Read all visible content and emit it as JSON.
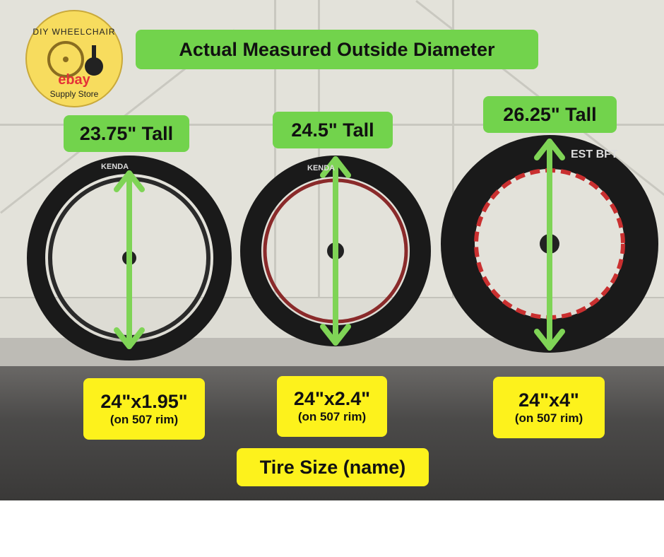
{
  "logo": {
    "top_text": "DIY WHEELCHAIR",
    "brand": "ebay",
    "bottom_text": "Supply Store"
  },
  "title": "Actual Measured Outside Diameter",
  "wheels": [
    {
      "height": "23.75\" Tall",
      "size": "24\"x1.95\"",
      "rim": "(on 507 rim)",
      "sidewall": "KENDA"
    },
    {
      "height": "24.5\" Tall",
      "size": "24\"x2.4\"",
      "rim": "(on 507 rim)",
      "sidewall": "KENDA"
    },
    {
      "height": "26.25\" Tall",
      "size": "24\"x4\"",
      "rim": "(on 507 rim)",
      "sidewall": "EST BFT"
    }
  ],
  "footer_label": "Tire Size (name)",
  "colors": {
    "green": "#72d34c",
    "yellow": "#fdf21c",
    "arrow": "#7fd456"
  }
}
